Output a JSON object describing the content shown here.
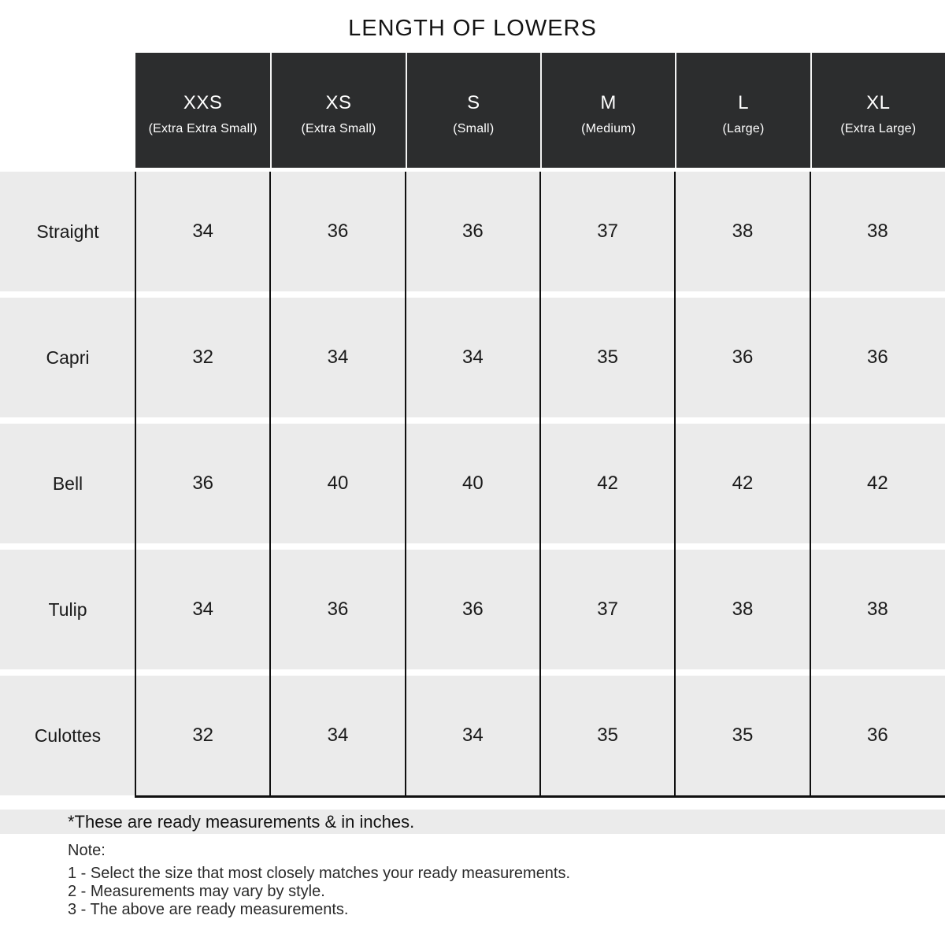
{
  "title": "LENGTH OF LOWERS",
  "footnote": "*These are ready measurements & in inches.",
  "note": {
    "heading": "Note:",
    "lines": [
      "1 - Select the size that most closely matches your ready measurements.",
      "2 - Measurements may vary by style.",
      "3 - The above are ready measurements."
    ]
  },
  "colors": {
    "header_bg": "#2c2d2e",
    "header_text": "#ffffff",
    "row_bg": "#ebebeb",
    "grid_line": "#101010",
    "page_bg": "#ffffff"
  },
  "chart_data": {
    "type": "table",
    "title": "LENGTH OF LOWERS",
    "units": "inches",
    "columns": [
      {
        "abbr": "XXS",
        "full": "(Extra Extra Small)"
      },
      {
        "abbr": "XS",
        "full": "(Extra Small)"
      },
      {
        "abbr": "S",
        "full": "(Small)"
      },
      {
        "abbr": "M",
        "full": "(Medium)"
      },
      {
        "abbr": "L",
        "full": "(Large)"
      },
      {
        "abbr": "XL",
        "full": "(Extra Large)"
      }
    ],
    "rows": [
      {
        "label": "Straight",
        "values": [
          34,
          36,
          36,
          37,
          38,
          38
        ]
      },
      {
        "label": "Capri",
        "values": [
          32,
          34,
          34,
          35,
          36,
          36
        ]
      },
      {
        "label": "Bell",
        "values": [
          36,
          40,
          40,
          42,
          42,
          42
        ]
      },
      {
        "label": "Tulip",
        "values": [
          34,
          36,
          36,
          37,
          38,
          38
        ]
      },
      {
        "label": "Culottes",
        "values": [
          32,
          34,
          34,
          35,
          35,
          36
        ]
      }
    ]
  }
}
